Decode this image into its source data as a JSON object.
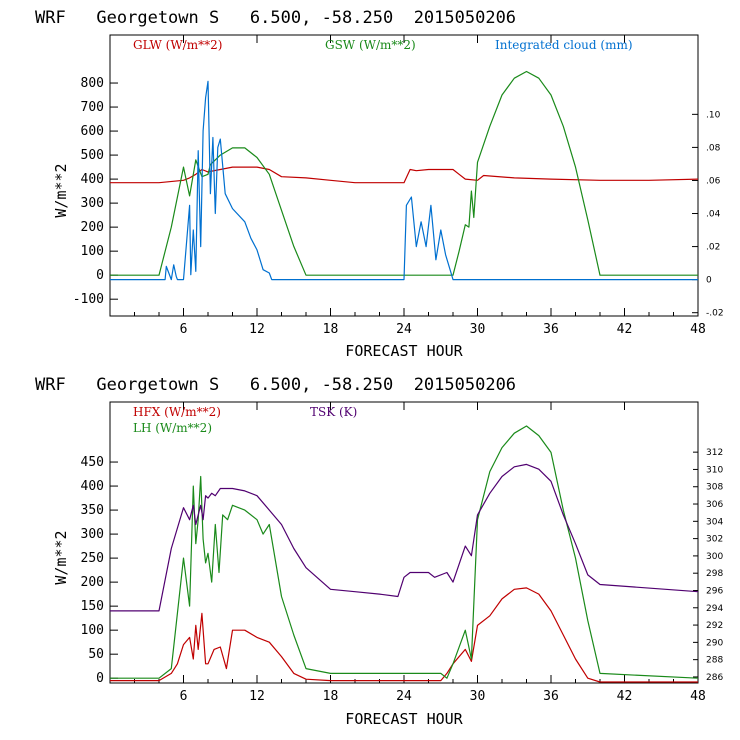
{
  "chart_data": [
    {
      "type": "line",
      "title": "WRF   Georgetown S   6.500, -58.250  2015050206",
      "xlabel": "FORECAST HOUR",
      "ylabel": "W/m**2",
      "xlim": [
        0,
        48
      ],
      "ylim": [
        -170,
        1000
      ],
      "x_ticks": [
        6,
        12,
        18,
        24,
        30,
        36,
        42,
        48
      ],
      "y_ticks": [
        -100,
        0,
        100,
        200,
        300,
        400,
        500,
        600,
        700,
        800
      ],
      "y2lim": [
        -0.022,
        0.148
      ],
      "y2_ticks": [
        -0.02,
        0,
        0.02,
        0.04,
        0.06,
        0.08,
        0.1
      ],
      "y2_tick_labels": [
        "-.02",
        "0",
        ".02",
        ".04",
        ".06",
        ".08",
        ".10"
      ],
      "series": [
        {
          "name": "GLW (W/m**2)",
          "color": "#c00000",
          "axis": "left",
          "x": [
            0,
            4,
            6,
            6.5,
            7,
            7.5,
            8,
            9,
            10,
            11,
            12,
            13,
            14,
            16,
            18,
            20,
            23,
            24,
            24.5,
            25,
            26,
            27,
            28,
            28.5,
            29,
            30,
            30.5,
            33,
            36,
            40,
            44,
            48
          ],
          "y": [
            385,
            385,
            395,
            405,
            420,
            440,
            430,
            440,
            450,
            450,
            450,
            440,
            410,
            405,
            395,
            385,
            385,
            385,
            440,
            435,
            440,
            440,
            440,
            420,
            400,
            395,
            415,
            405,
            400,
            395,
            395,
            400
          ]
        },
        {
          "name": "GSW (W/m**2)",
          "color": "#1a8a1a",
          "axis": "left",
          "x": [
            0,
            4,
            5,
            6,
            6.5,
            7,
            7.5,
            8,
            8.2,
            9,
            10,
            11,
            12,
            13,
            14,
            15,
            16,
            28,
            28.5,
            29,
            29.3,
            29.5,
            29.7,
            30,
            31,
            32,
            33,
            34,
            35,
            36,
            37,
            38,
            39,
            40,
            48
          ],
          "y": [
            0,
            0,
            200,
            450,
            330,
            480,
            410,
            420,
            460,
            500,
            530,
            530,
            490,
            420,
            270,
            120,
            0,
            0,
            100,
            210,
            200,
            350,
            240,
            470,
            620,
            750,
            820,
            848,
            820,
            750,
            620,
            450,
            230,
            0,
            0
          ]
        },
        {
          "name": "Integrated cloud (mm)",
          "color": "#0070d0",
          "axis": "right",
          "x": [
            0,
            4.5,
            4.6,
            5,
            5.2,
            5.4,
            5.5,
            6,
            6.5,
            6.6,
            6.8,
            7,
            7.2,
            7.4,
            7.6,
            7.8,
            8,
            8.2,
            8.4,
            8.6,
            8.8,
            9,
            9.4,
            10,
            11,
            11.5,
            12,
            12.5,
            13,
            13.2,
            24,
            24.2,
            24.6,
            25,
            25.4,
            25.8,
            26.2,
            26.6,
            27,
            27.4,
            27.8,
            28,
            48
          ],
          "y": [
            0,
            0,
            0.008,
            0,
            0.009,
            0.002,
            0,
            0,
            0.045,
            0.003,
            0.03,
            0.005,
            0.078,
            0.02,
            0.09,
            0.11,
            0.12,
            0.052,
            0.086,
            0.04,
            0.08,
            0.085,
            0.052,
            0.043,
            0.035,
            0.025,
            0.018,
            0.006,
            0.004,
            0,
            0,
            0.045,
            0.05,
            0.02,
            0.035,
            0.02,
            0.045,
            0.012,
            0.03,
            0.015,
            0.005,
            0,
            0
          ]
        }
      ]
    },
    {
      "type": "line",
      "title": "WRF   Georgetown S   6.500, -58.250  2015050206",
      "xlabel": "FORECAST HOUR",
      "ylabel": "W/m**2",
      "xlim": [
        0,
        48
      ],
      "ylim": [
        -10,
        575
      ],
      "x_ticks": [
        6,
        12,
        18,
        24,
        30,
        36,
        42,
        48
      ],
      "y_ticks": [
        0,
        50,
        100,
        150,
        200,
        250,
        300,
        350,
        400,
        450
      ],
      "y2lim": [
        285.3,
        317.8
      ],
      "y2_ticks": [
        286,
        288,
        290,
        292,
        294,
        296,
        298,
        300,
        302,
        304,
        306,
        308,
        310,
        312
      ],
      "y2_tick_labels": [
        "286",
        "288",
        "290",
        "292",
        "294",
        "296",
        "298",
        "300",
        "302",
        "304",
        "306",
        "308",
        "310",
        "312"
      ],
      "series": [
        {
          "name": "HFX (W/m**2)",
          "color": "#c00000",
          "axis": "left",
          "x": [
            0,
            4,
            5,
            5.5,
            6,
            6.5,
            6.8,
            7,
            7.2,
            7.5,
            7.8,
            8,
            8.5,
            9,
            9.5,
            10,
            11,
            12,
            13,
            14,
            15,
            16,
            18,
            20,
            24,
            27,
            27.5,
            28,
            29,
            29.5,
            30,
            31,
            32,
            33,
            34,
            35,
            36,
            37,
            38,
            39,
            40,
            48
          ],
          "y": [
            -5,
            -5,
            10,
            30,
            70,
            85,
            40,
            110,
            60,
            135,
            30,
            30,
            60,
            65,
            20,
            100,
            100,
            85,
            75,
            45,
            10,
            -2,
            -5,
            -5,
            -5,
            -5,
            10,
            30,
            60,
            35,
            110,
            130,
            165,
            185,
            188,
            175,
            140,
            90,
            40,
            0,
            -8,
            -8
          ]
        },
        {
          "name": "LH (W/m**2)",
          "color": "#1a8a1a",
          "axis": "left",
          "x": [
            0,
            4,
            5,
            6,
            6.5,
            6.8,
            7,
            7.2,
            7.4,
            7.6,
            7.8,
            8,
            8.3,
            8.6,
            8.9,
            9.2,
            9.6,
            10,
            11,
            12,
            12.5,
            13,
            14,
            15,
            16,
            18,
            24,
            27,
            27.5,
            28,
            29,
            29.5,
            30,
            31,
            32,
            33,
            34,
            35,
            36,
            37,
            38,
            39,
            40,
            48
          ],
          "y": [
            0,
            0,
            20,
            250,
            150,
            400,
            280,
            330,
            420,
            290,
            240,
            260,
            200,
            320,
            220,
            340,
            330,
            360,
            350,
            330,
            300,
            320,
            170,
            90,
            20,
            10,
            10,
            10,
            0,
            30,
            100,
            40,
            330,
            430,
            480,
            510,
            525,
            505,
            470,
            350,
            250,
            120,
            10,
            0
          ]
        },
        {
          "name": "TSK (K)",
          "color": "#500070",
          "axis": "left",
          "x": [
            0,
            4,
            5,
            6,
            6.5,
            6.8,
            7,
            7.2,
            7.4,
            7.6,
            7.8,
            8,
            8.3,
            8.6,
            9,
            10,
            11,
            12,
            13,
            14,
            15,
            16,
            18,
            20,
            22,
            23.5,
            24,
            24.5,
            26,
            26.5,
            27.5,
            28,
            29,
            29.5,
            30,
            31,
            32,
            33,
            34,
            35,
            36,
            37,
            38,
            39,
            40,
            48
          ],
          "y": [
            140,
            140,
            270,
            355,
            330,
            360,
            320,
            340,
            360,
            330,
            380,
            375,
            385,
            380,
            395,
            395,
            390,
            380,
            350,
            320,
            270,
            230,
            185,
            180,
            175,
            170,
            210,
            220,
            220,
            210,
            220,
            200,
            275,
            255,
            340,
            385,
            420,
            440,
            445,
            435,
            410,
            340,
            280,
            215,
            195,
            180
          ]
        }
      ]
    }
  ]
}
